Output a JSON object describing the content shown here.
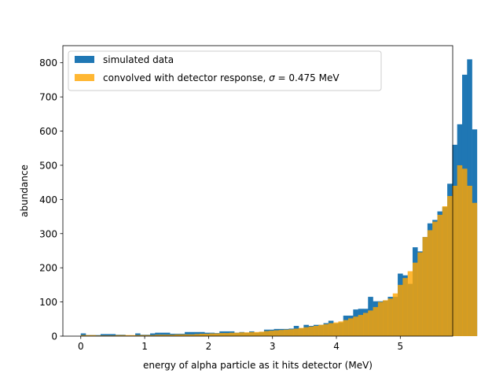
{
  "chart_data": {
    "type": "bar",
    "histogram": true,
    "xlabel": "energy of alpha particle as it hits detector (MeV)",
    "ylabel": "abundance",
    "xlim": [
      -0.28,
      5.82
    ],
    "ylim": [
      0,
      850
    ],
    "xticks": [
      "0",
      "1",
      "2",
      "3",
      "4",
      "5"
    ],
    "yticks": [
      "0",
      "100",
      "200",
      "300",
      "400",
      "500",
      "600",
      "700",
      "800"
    ],
    "grid": false,
    "legend_position": "upper-left",
    "legend": {
      "entries": [
        {
          "label": "simulated data"
        },
        {
          "label_prefix": "convolved with detector response, ",
          "sigma_symbol": "σ",
          "label_suffix": " = 0.475 MeV"
        }
      ]
    },
    "bin_start": 0.0,
    "bin_width": 0.0775,
    "series": [
      {
        "name": "simulated data",
        "color": "#1f77b4",
        "alpha": 1.0,
        "values": [
          8,
          3,
          3,
          3,
          6,
          6,
          6,
          4,
          4,
          2,
          2,
          8,
          4,
          4,
          8,
          10,
          10,
          10,
          7,
          7,
          7,
          12,
          12,
          12,
          12,
          10,
          10,
          9,
          14,
          14,
          14,
          10,
          12,
          10,
          14,
          10,
          12,
          19,
          19,
          21,
          21,
          21,
          22,
          30,
          23,
          33,
          30,
          33,
          33,
          38,
          45,
          37,
          40,
          60,
          60,
          78,
          80,
          80,
          115,
          102,
          102,
          104,
          115,
          115,
          183,
          178,
          153,
          260,
          248,
          290,
          330,
          340,
          365,
          378,
          446,
          560,
          620,
          765,
          810,
          605
        ]
      },
      {
        "name": "convolved with detector response, σ = 0.475 MeV",
        "color": "#ffa500",
        "alpha": 0.8,
        "values": [
          3,
          3,
          3,
          2,
          2,
          2,
          2,
          3,
          3,
          3,
          3,
          3,
          3,
          3,
          3,
          4,
          4,
          4,
          4,
          5,
          5,
          5,
          5,
          6,
          7,
          7,
          8,
          8,
          9,
          9,
          10,
          10,
          11,
          11,
          12,
          12,
          13,
          15,
          16,
          17,
          18,
          19,
          20,
          22,
          24,
          26,
          28,
          30,
          33,
          35,
          38,
          40,
          43,
          47,
          52,
          57,
          62,
          68,
          75,
          85,
          100,
          105,
          110,
          125,
          150,
          170,
          190,
          215,
          245,
          290,
          310,
          335,
          355,
          380,
          410,
          440,
          500,
          490,
          440,
          390
        ]
      }
    ]
  }
}
